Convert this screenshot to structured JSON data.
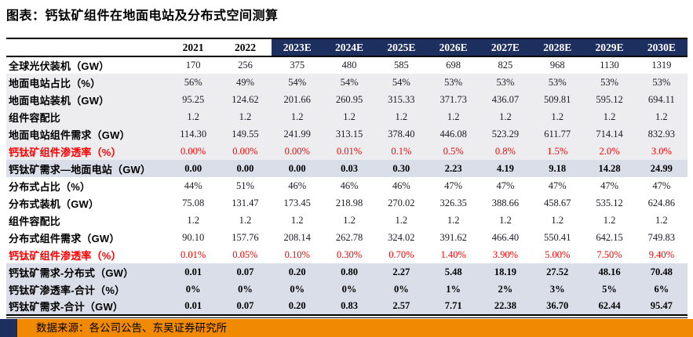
{
  "title": "图表：钙钛矿组件在地面电站及分布式空间测算",
  "source": "数据来源：各公司公告、东吴证券研究所",
  "colors": {
    "header_navy": "#1d2f5e",
    "stripe_gray": "#ededf0",
    "stripe_blue_gray": "#d9dee9",
    "red_text": "#ff0000",
    "footer_orange": "#f18a00"
  },
  "table": {
    "columns": [
      "2021",
      "2022",
      "2023E",
      "2024E",
      "2025E",
      "2026E",
      "2027E",
      "2028E",
      "2029E",
      "2030E"
    ],
    "historical_columns": 2,
    "rows": [
      {
        "label": "全球光伏装机（GW）",
        "bg": "white",
        "emphasis": "normal",
        "values": [
          "170",
          "256",
          "375",
          "480",
          "585",
          "698",
          "825",
          "968",
          "1130",
          "1319"
        ]
      },
      {
        "label": "地面电站占比（%）",
        "bg": "gray",
        "emphasis": "normal",
        "values": [
          "56%",
          "49%",
          "54%",
          "54%",
          "54%",
          "53%",
          "53%",
          "53%",
          "53%",
          "53%"
        ]
      },
      {
        "label": "地面电站装机（GW）",
        "bg": "gray",
        "emphasis": "normal",
        "values": [
          "95.25",
          "124.62",
          "201.66",
          "260.95",
          "315.33",
          "371.73",
          "436.07",
          "509.81",
          "595.12",
          "694.11"
        ]
      },
      {
        "label": "组件容配比",
        "bg": "gray",
        "emphasis": "normal",
        "values": [
          "1.2",
          "1.2",
          "1.2",
          "1.2",
          "1.2",
          "1.2",
          "1.2",
          "1.2",
          "1.2",
          "1.2"
        ]
      },
      {
        "label": "地面电站组件需求（GW）",
        "bg": "gray",
        "emphasis": "normal",
        "values": [
          "114.30",
          "149.55",
          "241.99",
          "313.15",
          "378.40",
          "446.08",
          "523.29",
          "611.77",
          "714.14",
          "832.93"
        ]
      },
      {
        "label": "钙钛矿组件渗透率（%）",
        "bg": "gray",
        "emphasis": "red",
        "values": [
          "0.00%",
          "0.00%",
          "0.00%",
          "0.01%",
          "0.1%",
          "0.5%",
          "0.8%",
          "1.5%",
          "2.0%",
          "3.0%"
        ]
      },
      {
        "label": "钙钛矿需求—地面电站（GW）",
        "bg": "blue",
        "emphasis": "bold",
        "values": [
          "0.00",
          "0.00",
          "0.00",
          "0.03",
          "0.30",
          "2.23",
          "4.19",
          "9.18",
          "14.28",
          "24.99"
        ]
      },
      {
        "label": "分布式占比（%）",
        "bg": "white",
        "emphasis": "normal",
        "values": [
          "44%",
          "51%",
          "46%",
          "46%",
          "46%",
          "47%",
          "47%",
          "47%",
          "47%",
          "47%"
        ]
      },
      {
        "label": "分布式装机（GW）",
        "bg": "white",
        "emphasis": "normal",
        "values": [
          "75.08",
          "131.47",
          "173.45",
          "218.98",
          "270.02",
          "326.35",
          "388.66",
          "458.67",
          "535.12",
          "624.86"
        ]
      },
      {
        "label": "组件容配比",
        "bg": "white",
        "emphasis": "normal",
        "values": [
          "1.2",
          "1.2",
          "1.2",
          "1.2",
          "1.2",
          "1.2",
          "1.2",
          "1.2",
          "1.2",
          "1.2"
        ]
      },
      {
        "label": "分布式组件需求（GW）",
        "bg": "white",
        "emphasis": "normal",
        "values": [
          "90.10",
          "157.76",
          "208.14",
          "262.78",
          "324.02",
          "391.62",
          "466.40",
          "550.41",
          "642.15",
          "749.83"
        ]
      },
      {
        "label": "钙钛矿组件渗透率（%）",
        "bg": "white",
        "emphasis": "red",
        "values": [
          "0.01%",
          "0.05%",
          "0.10%",
          "0.30%",
          "0.70%",
          "1.40%",
          "3.90%",
          "5.00%",
          "7.50%",
          "9.40%"
        ]
      },
      {
        "label": "钙钛矿需求-分布式（GW）",
        "bg": "blue",
        "emphasis": "bold",
        "values": [
          "0.01",
          "0.07",
          "0.20",
          "0.80",
          "2.27",
          "5.48",
          "18.19",
          "27.52",
          "48.16",
          "70.48"
        ]
      },
      {
        "label": "钙钛矿渗透率-合计（%）",
        "bg": "blue",
        "emphasis": "bold",
        "values": [
          "0%",
          "0%",
          "0%",
          "0%",
          "0%",
          "1%",
          "2%",
          "3%",
          "5%",
          "6%"
        ]
      },
      {
        "label": "钙钛矿需求-合计（GW）",
        "bg": "blue",
        "emphasis": "bold",
        "values": [
          "0.01",
          "0.07",
          "0.20",
          "0.83",
          "2.57",
          "7.71",
          "22.38",
          "36.70",
          "62.44",
          "95.47"
        ]
      }
    ]
  }
}
